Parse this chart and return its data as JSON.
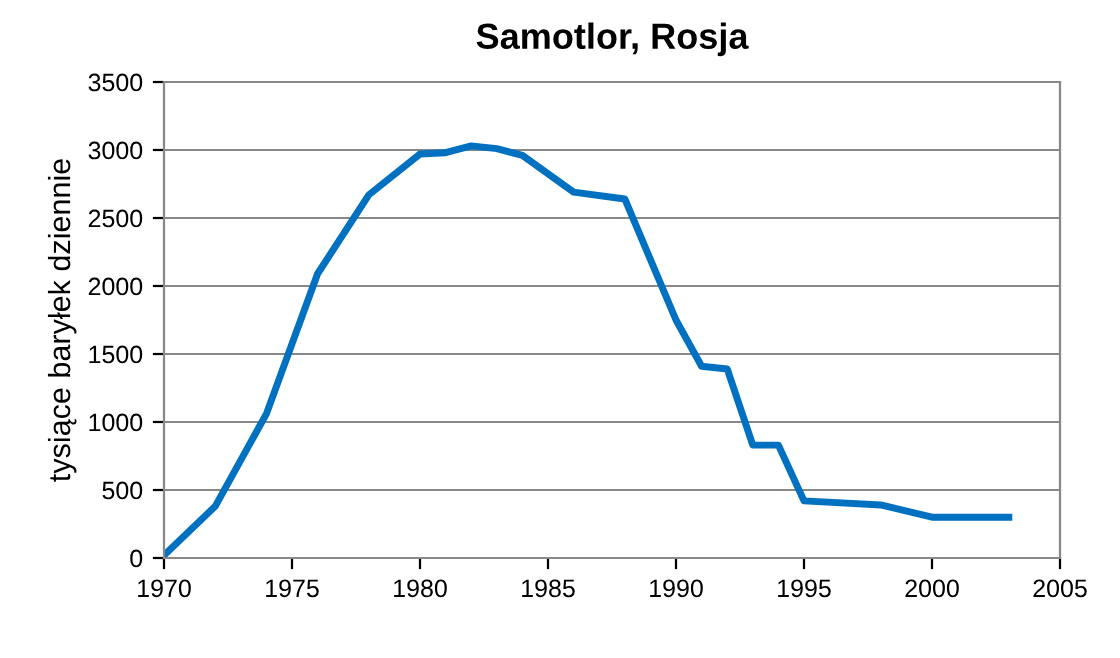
{
  "chart_data": {
    "type": "line",
    "title": "Samotlor, Rosja",
    "ylabel": "tysiące baryłek dziennie",
    "x": [
      1970,
      1972,
      1974,
      1976,
      1978,
      1980,
      1981,
      1982,
      1983,
      1984,
      1986,
      1988,
      1990,
      1991,
      1992,
      1993,
      1994,
      1995,
      1998,
      2000,
      2003
    ],
    "series": [
      {
        "color": "#0070c0",
        "values": [
          20,
          380,
          1060,
          2090,
          2670,
          2970,
          2980,
          3030,
          3010,
          2960,
          2690,
          2640,
          1750,
          1410,
          1390,
          830,
          830,
          420,
          390,
          300,
          300
        ]
      }
    ],
    "xlim": [
      1970,
      2005
    ],
    "xticks": [
      1970,
      1975,
      1980,
      1985,
      1990,
      1995,
      2000,
      2005
    ],
    "ylim": [
      0,
      3500
    ],
    "yticks": [
      0,
      500,
      1000,
      1500,
      2000,
      2500,
      3000,
      3500
    ],
    "grid": "y",
    "legend": false,
    "marker": "none",
    "line_style": "solid"
  }
}
